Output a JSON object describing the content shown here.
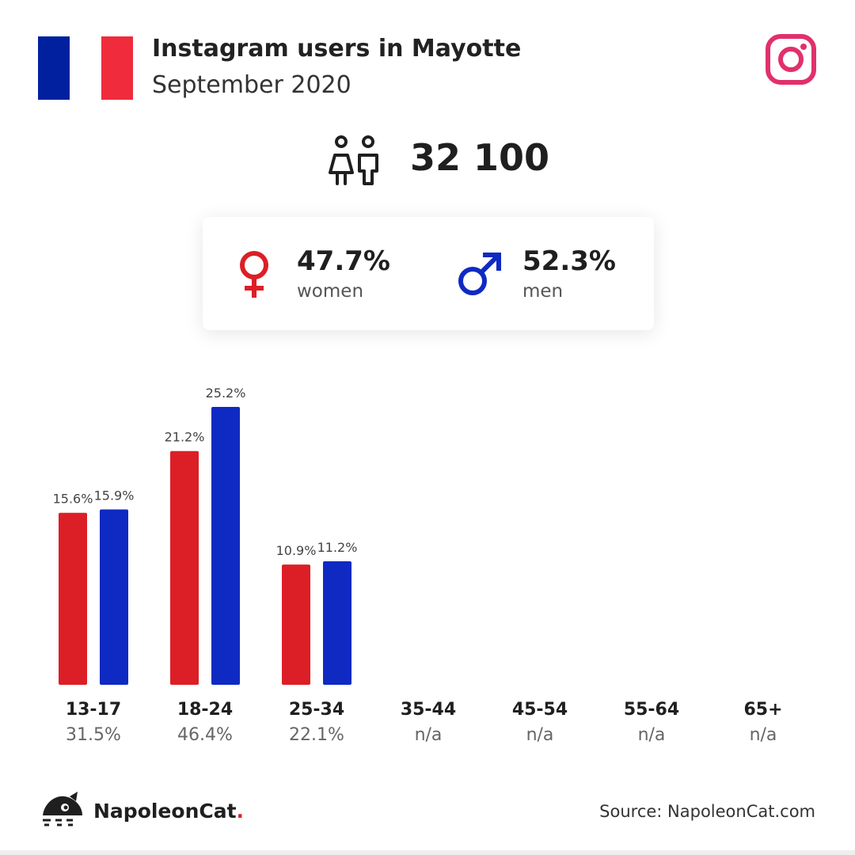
{
  "header": {
    "title": "Instagram users in Mayotte",
    "subtitle": "September 2020"
  },
  "flag_colors": [
    "#00209f",
    "#ffffff",
    "#ef2b3c"
  ],
  "brand_icon": "instagram-icon",
  "total": {
    "icon": "people-icon",
    "value": "32 100"
  },
  "gender": {
    "women": {
      "percent": "47.7%",
      "label": "women",
      "icon": "female-symbol-icon",
      "color": "#dc1f26"
    },
    "men": {
      "percent": "52.3%",
      "label": "men",
      "icon": "male-symbol-icon",
      "color": "#0f2ac2"
    }
  },
  "chart_data": {
    "type": "bar",
    "categories": [
      "13-17",
      "18-24",
      "25-34",
      "35-44",
      "45-54",
      "55-64",
      "65+"
    ],
    "category_totals": [
      "31.5%",
      "46.4%",
      "22.1%",
      "n/a",
      "n/a",
      "n/a",
      "n/a"
    ],
    "series": [
      {
        "name": "women",
        "color": "#dc1f26",
        "values": [
          15.6,
          21.2,
          10.9,
          null,
          null,
          null,
          null
        ],
        "labels": [
          "15.6%",
          "21.2%",
          "10.9%",
          "",
          "",
          "",
          ""
        ]
      },
      {
        "name": "men",
        "color": "#0f2ac2",
        "values": [
          15.9,
          25.2,
          11.2,
          null,
          null,
          null,
          null
        ],
        "labels": [
          "15.9%",
          "25.2%",
          "11.2%",
          "",
          "",
          "",
          ""
        ]
      }
    ],
    "ylim": [
      0,
      25.2
    ],
    "grid": false
  },
  "footer": {
    "logo_icon": "napoleoncat-logo-icon",
    "brand_name": "NapoleonCat",
    "brand_dot": ".",
    "source": "Source: NapoleonCat.com"
  }
}
